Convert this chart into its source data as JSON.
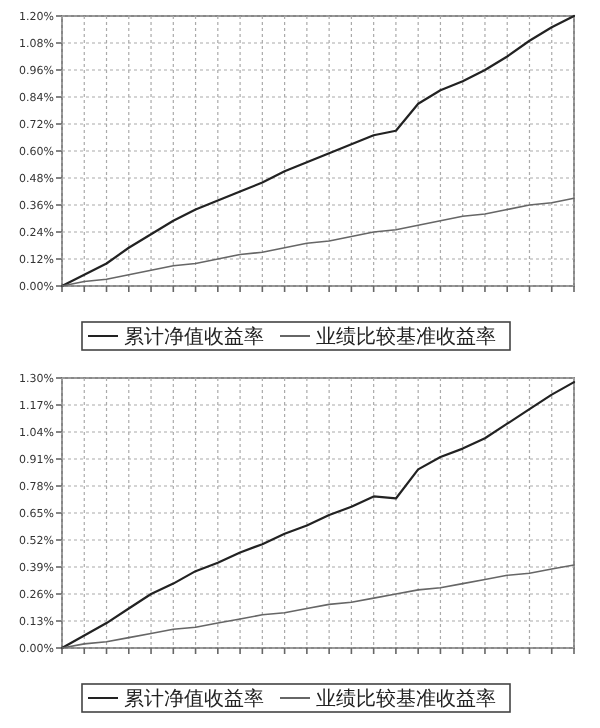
{
  "chart_data": [
    {
      "type": "line",
      "categories": [
        null,
        null,
        null,
        null,
        null,
        null,
        null,
        null,
        null,
        null,
        null,
        null,
        null,
        null,
        null,
        null,
        null,
        null,
        null,
        null,
        null,
        null,
        null,
        null
      ],
      "ylim": [
        0,
        1.2
      ],
      "yticks": [
        {
          "value": 0,
          "label": "0.00%"
        },
        {
          "value": 0.12,
          "label": "0.12%"
        },
        {
          "value": 0.24,
          "label": "0.24%"
        },
        {
          "value": 0.36,
          "label": "0.36%"
        },
        {
          "value": 0.48,
          "label": "0.48%"
        },
        {
          "value": 0.6,
          "label": "0.60%"
        },
        {
          "value": 0.72,
          "label": "0.72%"
        },
        {
          "value": 0.84,
          "label": "0.84%"
        },
        {
          "value": 0.96,
          "label": "0.96%"
        },
        {
          "value": 1.08,
          "label": "1.08%"
        },
        {
          "value": 1.2,
          "label": "1.20%"
        }
      ],
      "grid": true,
      "legend": "bottom",
      "series": [
        {
          "name": "累计净值收益率",
          "color": "#222222",
          "values": [
            0,
            0.05,
            0.1,
            0.17,
            0.23,
            0.29,
            0.34,
            0.38,
            0.42,
            0.46,
            0.51,
            0.55,
            0.59,
            0.63,
            0.67,
            0.69,
            0.81,
            0.87,
            0.91,
            0.96,
            1.02,
            1.09,
            1.15,
            1.2
          ]
        },
        {
          "name": "业绩比较基准收益率",
          "color": "#666666",
          "values": [
            0,
            0.02,
            0.03,
            0.05,
            0.07,
            0.09,
            0.1,
            0.12,
            0.14,
            0.15,
            0.17,
            0.19,
            0.2,
            0.22,
            0.24,
            0.25,
            0.27,
            0.29,
            0.31,
            0.32,
            0.34,
            0.36,
            0.37,
            0.39
          ]
        }
      ]
    },
    {
      "type": "line",
      "categories": [
        null,
        null,
        null,
        null,
        null,
        null,
        null,
        null,
        null,
        null,
        null,
        null,
        null,
        null,
        null,
        null,
        null,
        null,
        null,
        null,
        null,
        null,
        null,
        null
      ],
      "ylim": [
        0,
        1.3
      ],
      "yticks": [
        {
          "value": 0,
          "label": "0.00%"
        },
        {
          "value": 0.13,
          "label": "0.13%"
        },
        {
          "value": 0.26,
          "label": "0.26%"
        },
        {
          "value": 0.39,
          "label": "0.39%"
        },
        {
          "value": 0.52,
          "label": "0.52%"
        },
        {
          "value": 0.65,
          "label": "0.65%"
        },
        {
          "value": 0.78,
          "label": "0.78%"
        },
        {
          "value": 0.91,
          "label": "0.91%"
        },
        {
          "value": 1.04,
          "label": "1.04%"
        },
        {
          "value": 1.17,
          "label": "1.17%"
        },
        {
          "value": 1.3,
          "label": "1.30%"
        }
      ],
      "grid": true,
      "legend": "bottom",
      "series": [
        {
          "name": "累计净值收益率",
          "color": "#222222",
          "values": [
            0,
            0.06,
            0.12,
            0.19,
            0.26,
            0.31,
            0.37,
            0.41,
            0.46,
            0.5,
            0.55,
            0.59,
            0.64,
            0.68,
            0.73,
            0.72,
            0.86,
            0.92,
            0.96,
            1.01,
            1.08,
            1.15,
            1.22,
            1.28
          ]
        },
        {
          "name": "业绩比较基准收益率",
          "color": "#666666",
          "values": [
            0,
            0.02,
            0.03,
            0.05,
            0.07,
            0.09,
            0.1,
            0.12,
            0.14,
            0.16,
            0.17,
            0.19,
            0.21,
            0.22,
            0.24,
            0.26,
            0.28,
            0.29,
            0.31,
            0.33,
            0.35,
            0.36,
            0.38,
            0.4
          ]
        }
      ]
    }
  ]
}
